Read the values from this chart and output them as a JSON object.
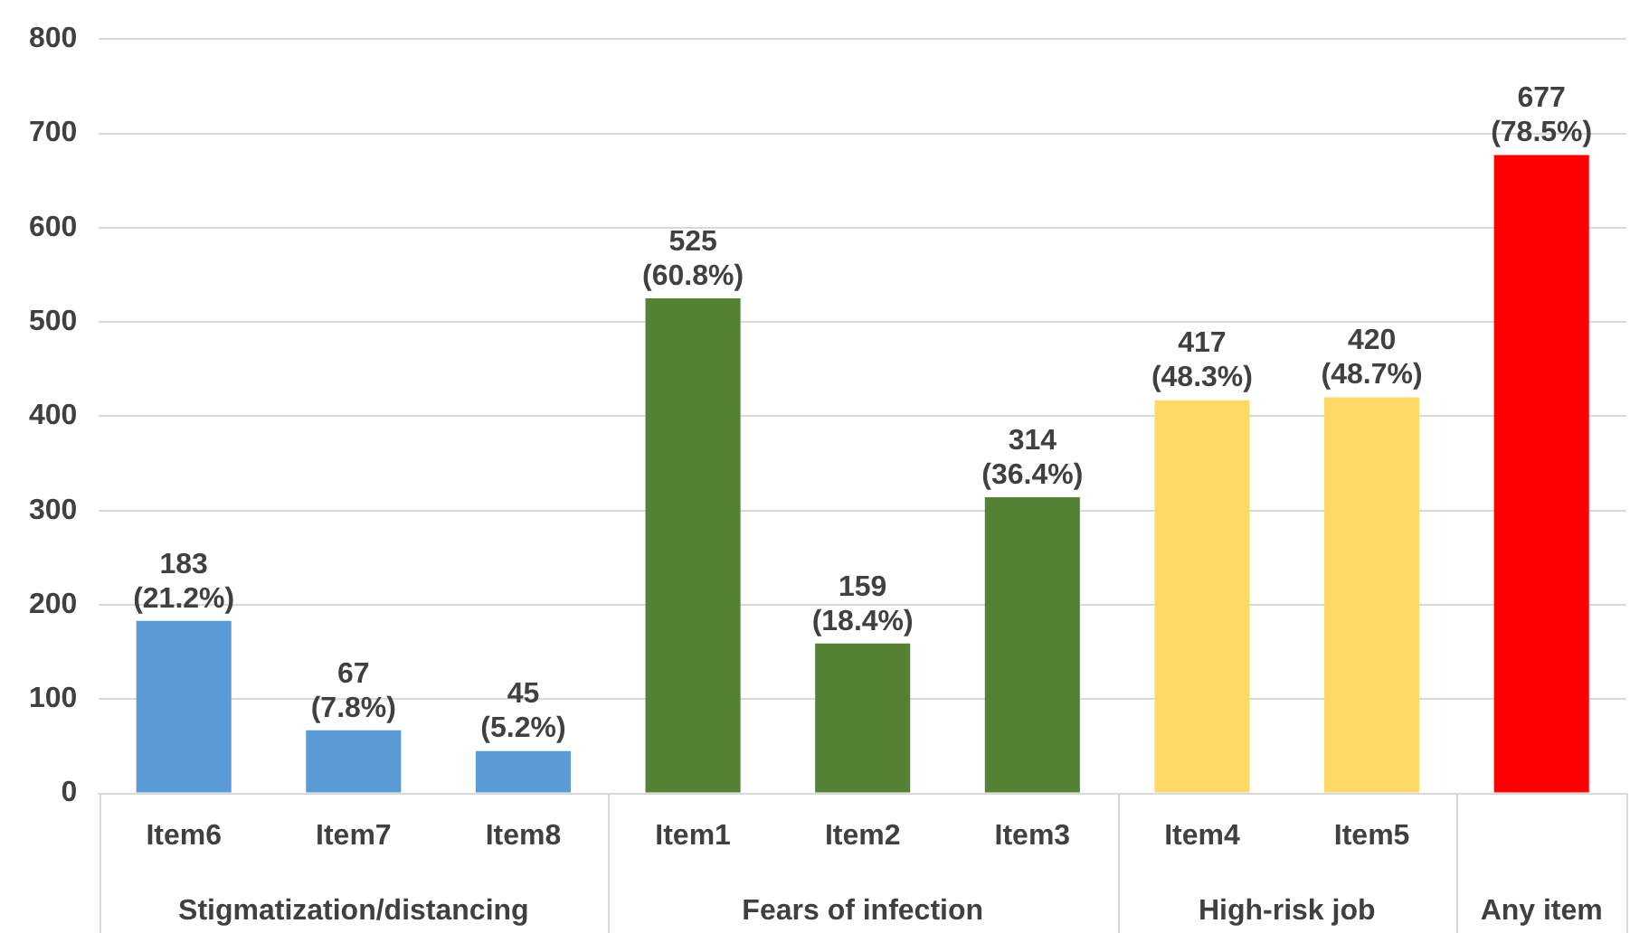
{
  "chart_data": {
    "type": "bar",
    "categories": [
      "Item6",
      "Item7",
      "Item8",
      "Item1",
      "Item2",
      "Item3",
      "Item4",
      "Item5",
      null
    ],
    "series": [
      {
        "color": "#5b9bd5",
        "values": [
          183,
          67,
          45,
          null,
          null,
          null,
          null,
          null,
          null
        ],
        "value_labels": [
          "183 (21.2%)",
          "67 (7.8%)",
          "45 (5.2%)",
          null,
          null,
          null,
          null,
          null,
          null
        ]
      },
      {
        "color": "#548235",
        "values": [
          null,
          null,
          null,
          525,
          159,
          314,
          null,
          null,
          null
        ],
        "value_labels": [
          null,
          null,
          null,
          "525 (60.8%)",
          "159 (18.4%)",
          "314 (36.4%)",
          null,
          null,
          null
        ]
      },
      {
        "color": "#ffd966",
        "values": [
          null,
          null,
          null,
          null,
          null,
          null,
          417,
          420,
          null
        ],
        "value_labels": [
          null,
          null,
          null,
          null,
          null,
          null,
          "417 (48.3%)",
          "420 (48.7%)",
          null
        ]
      },
      {
        "color": "#ff0000",
        "values": [
          null,
          null,
          null,
          null,
          null,
          null,
          null,
          null,
          677
        ],
        "value_labels": [
          null,
          null,
          null,
          null,
          null,
          null,
          null,
          null,
          "677 (78.5%)"
        ]
      }
    ],
    "annotations": [
      "Stigmatization/distancing",
      "Fears of infection",
      "High-risk job",
      "Any item"
    ],
    "ylim": [
      0,
      800
    ],
    "yticks": [
      0,
      100,
      200,
      300,
      400,
      500,
      600,
      700,
      800
    ],
    "grid": "y",
    "legend": false
  }
}
